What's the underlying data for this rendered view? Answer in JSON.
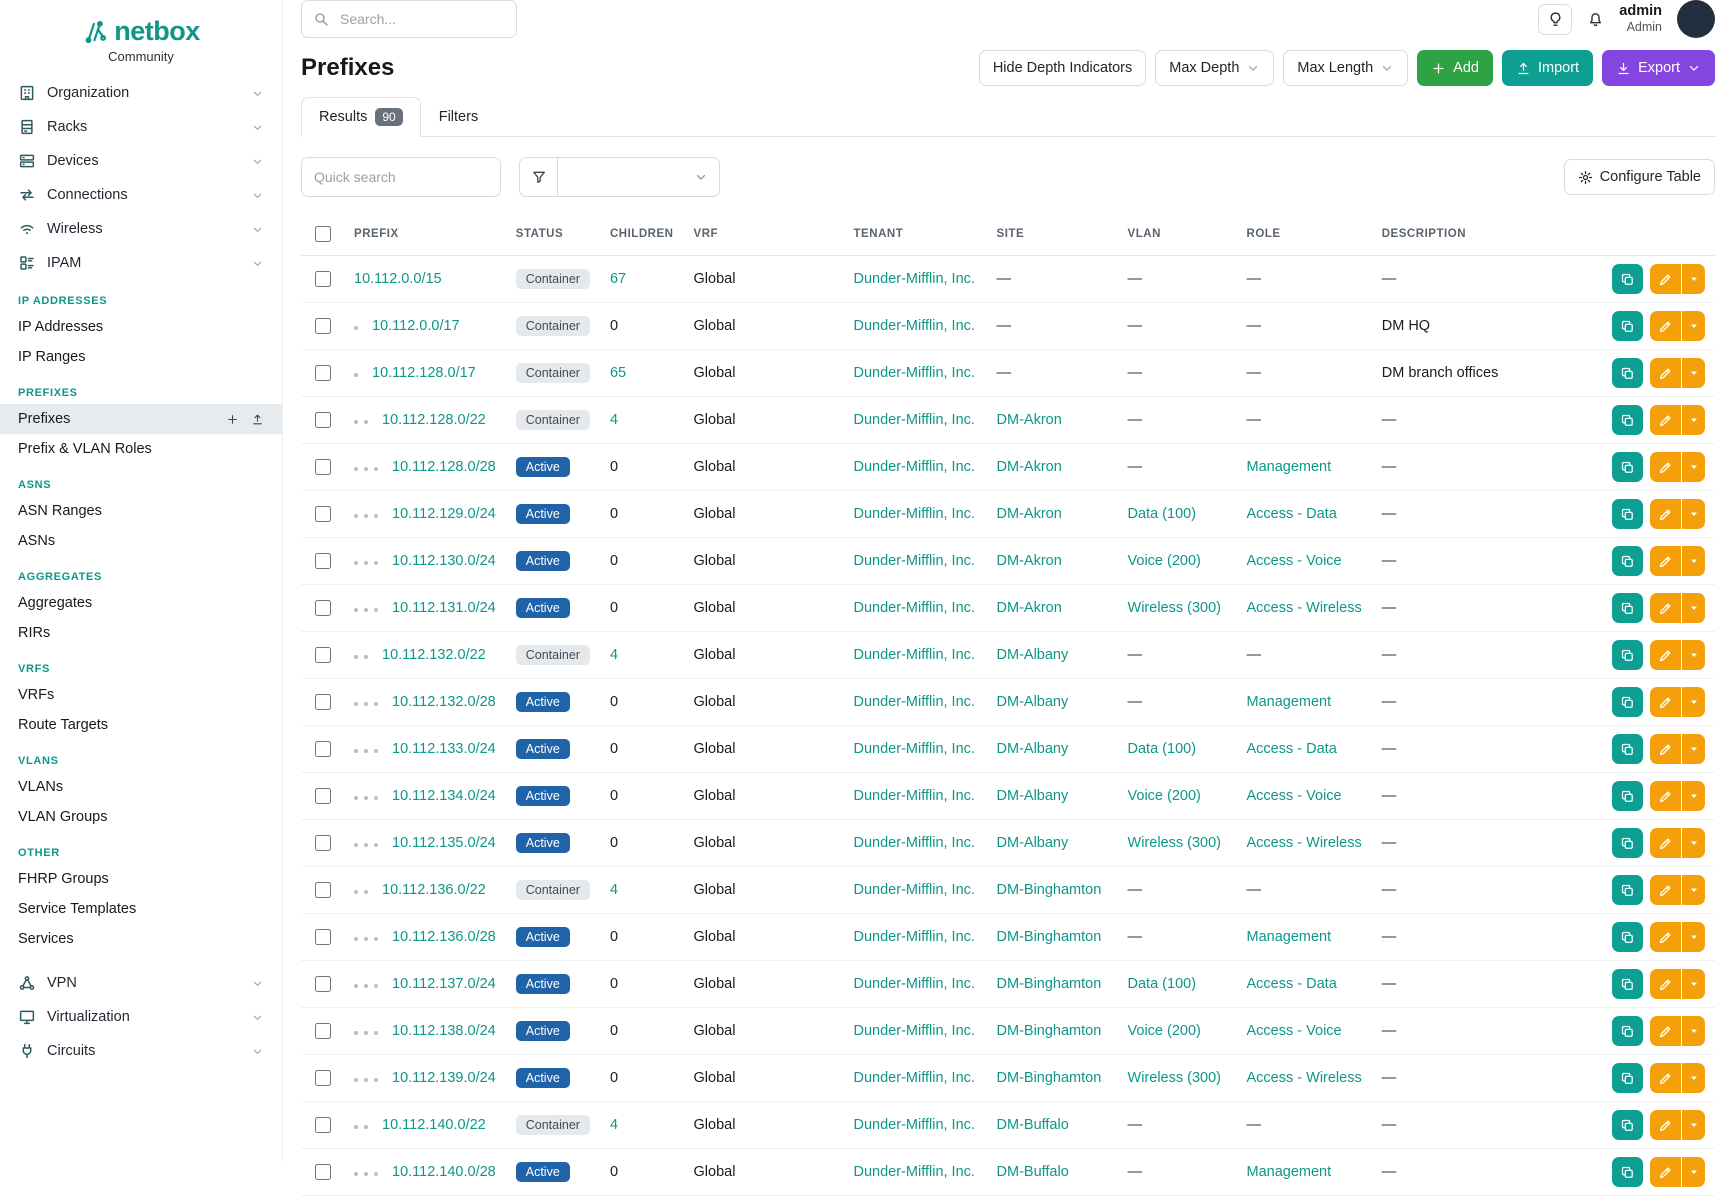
{
  "brand": {
    "name": "netbox",
    "subtitle": "Community"
  },
  "topbar": {
    "search_placeholder": "Search...",
    "user_name": "admin",
    "user_role": "Admin"
  },
  "sidebar": {
    "top_items": [
      {
        "label": "Organization",
        "icon": "building-icon"
      },
      {
        "label": "Racks",
        "icon": "rack-icon"
      },
      {
        "label": "Devices",
        "icon": "devices-icon"
      },
      {
        "label": "Connections",
        "icon": "connections-icon"
      },
      {
        "label": "Wireless",
        "icon": "wireless-icon"
      },
      {
        "label": "IPAM",
        "icon": "ipam-icon",
        "expanded": true
      }
    ],
    "sections": [
      {
        "header": "IP ADDRESSES",
        "items": [
          "IP Addresses",
          "IP Ranges"
        ]
      },
      {
        "header": "PREFIXES",
        "items": [
          "Prefixes",
          "Prefix & VLAN Roles"
        ],
        "active_item": "Prefixes"
      },
      {
        "header": "ASNS",
        "items": [
          "ASN Ranges",
          "ASNs"
        ]
      },
      {
        "header": "AGGREGATES",
        "items": [
          "Aggregates",
          "RIRs"
        ]
      },
      {
        "header": "VRFS",
        "items": [
          "VRFs",
          "Route Targets"
        ]
      },
      {
        "header": "VLANS",
        "items": [
          "VLANs",
          "VLAN Groups"
        ]
      },
      {
        "header": "OTHER",
        "items": [
          "FHRP Groups",
          "Service Templates",
          "Services"
        ]
      }
    ],
    "bottom_items": [
      {
        "label": "VPN",
        "icon": "vpn-icon"
      },
      {
        "label": "Virtualization",
        "icon": "virtualization-icon"
      },
      {
        "label": "Circuits",
        "icon": "circuits-icon"
      }
    ]
  },
  "page": {
    "title": "Prefixes",
    "actions": {
      "hide_depth": "Hide Depth Indicators",
      "max_depth": "Max Depth",
      "max_length": "Max Length",
      "add": "Add",
      "import": "Import",
      "export": "Export"
    }
  },
  "tabs": [
    {
      "label": "Results",
      "badge": "90",
      "active": true
    },
    {
      "label": "Filters",
      "active": false
    }
  ],
  "toolbar": {
    "quick_search_placeholder": "Quick search",
    "configure_table": "Configure Table"
  },
  "table": {
    "columns": [
      "PREFIX",
      "STATUS",
      "CHILDREN",
      "VRF",
      "TENANT",
      "SITE",
      "VLAN",
      "ROLE",
      "DESCRIPTION"
    ],
    "rows": [
      {
        "depth": 0,
        "prefix": "10.112.0.0/15",
        "status": "Container",
        "children": "67",
        "vrf": "Global",
        "tenant": "Dunder-Mifflin, Inc.",
        "site": "—",
        "vlan": "—",
        "role": "—",
        "description": "—"
      },
      {
        "depth": 1,
        "prefix": "10.112.0.0/17",
        "status": "Container",
        "children": "0",
        "vrf": "Global",
        "tenant": "Dunder-Mifflin, Inc.",
        "site": "—",
        "vlan": "—",
        "role": "—",
        "description": "DM HQ"
      },
      {
        "depth": 1,
        "prefix": "10.112.128.0/17",
        "status": "Container",
        "children": "65",
        "vrf": "Global",
        "tenant": "Dunder-Mifflin, Inc.",
        "site": "—",
        "vlan": "—",
        "role": "—",
        "description": "DM branch offices"
      },
      {
        "depth": 2,
        "prefix": "10.112.128.0/22",
        "status": "Container",
        "children": "4",
        "vrf": "Global",
        "tenant": "Dunder-Mifflin, Inc.",
        "site": "DM-Akron",
        "vlan": "—",
        "role": "—",
        "description": "—"
      },
      {
        "depth": 3,
        "prefix": "10.112.128.0/28",
        "status": "Active",
        "children": "0",
        "vrf": "Global",
        "tenant": "Dunder-Mifflin, Inc.",
        "site": "DM-Akron",
        "vlan": "—",
        "role": "Management",
        "description": "—"
      },
      {
        "depth": 3,
        "prefix": "10.112.129.0/24",
        "status": "Active",
        "children": "0",
        "vrf": "Global",
        "tenant": "Dunder-Mifflin, Inc.",
        "site": "DM-Akron",
        "vlan": "Data (100)",
        "role": "Access - Data",
        "description": "—"
      },
      {
        "depth": 3,
        "prefix": "10.112.130.0/24",
        "status": "Active",
        "children": "0",
        "vrf": "Global",
        "tenant": "Dunder-Mifflin, Inc.",
        "site": "DM-Akron",
        "vlan": "Voice (200)",
        "role": "Access - Voice",
        "description": "—"
      },
      {
        "depth": 3,
        "prefix": "10.112.131.0/24",
        "status": "Active",
        "children": "0",
        "vrf": "Global",
        "tenant": "Dunder-Mifflin, Inc.",
        "site": "DM-Akron",
        "vlan": "Wireless (300)",
        "role": "Access - Wireless",
        "description": "—"
      },
      {
        "depth": 2,
        "prefix": "10.112.132.0/22",
        "status": "Container",
        "children": "4",
        "vrf": "Global",
        "tenant": "Dunder-Mifflin, Inc.",
        "site": "DM-Albany",
        "vlan": "—",
        "role": "—",
        "description": "—"
      },
      {
        "depth": 3,
        "prefix": "10.112.132.0/28",
        "status": "Active",
        "children": "0",
        "vrf": "Global",
        "tenant": "Dunder-Mifflin, Inc.",
        "site": "DM-Albany",
        "vlan": "—",
        "role": "Management",
        "description": "—"
      },
      {
        "depth": 3,
        "prefix": "10.112.133.0/24",
        "status": "Active",
        "children": "0",
        "vrf": "Global",
        "tenant": "Dunder-Mifflin, Inc.",
        "site": "DM-Albany",
        "vlan": "Data (100)",
        "role": "Access - Data",
        "description": "—"
      },
      {
        "depth": 3,
        "prefix": "10.112.134.0/24",
        "status": "Active",
        "children": "0",
        "vrf": "Global",
        "tenant": "Dunder-Mifflin, Inc.",
        "site": "DM-Albany",
        "vlan": "Voice (200)",
        "role": "Access - Voice",
        "description": "—"
      },
      {
        "depth": 3,
        "prefix": "10.112.135.0/24",
        "status": "Active",
        "children": "0",
        "vrf": "Global",
        "tenant": "Dunder-Mifflin, Inc.",
        "site": "DM-Albany",
        "vlan": "Wireless (300)",
        "role": "Access - Wireless",
        "description": "—"
      },
      {
        "depth": 2,
        "prefix": "10.112.136.0/22",
        "status": "Container",
        "children": "4",
        "vrf": "Global",
        "tenant": "Dunder-Mifflin, Inc.",
        "site": "DM-Binghamton",
        "vlan": "—",
        "role": "—",
        "description": "—"
      },
      {
        "depth": 3,
        "prefix": "10.112.136.0/28",
        "status": "Active",
        "children": "0",
        "vrf": "Global",
        "tenant": "Dunder-Mifflin, Inc.",
        "site": "DM-Binghamton",
        "vlan": "—",
        "role": "Management",
        "description": "—"
      },
      {
        "depth": 3,
        "prefix": "10.112.137.0/24",
        "status": "Active",
        "children": "0",
        "vrf": "Global",
        "tenant": "Dunder-Mifflin, Inc.",
        "site": "DM-Binghamton",
        "vlan": "Data (100)",
        "role": "Access - Data",
        "description": "—"
      },
      {
        "depth": 3,
        "prefix": "10.112.138.0/24",
        "status": "Active",
        "children": "0",
        "vrf": "Global",
        "tenant": "Dunder-Mifflin, Inc.",
        "site": "DM-Binghamton",
        "vlan": "Voice (200)",
        "role": "Access - Voice",
        "description": "—"
      },
      {
        "depth": 3,
        "prefix": "10.112.139.0/24",
        "status": "Active",
        "children": "0",
        "vrf": "Global",
        "tenant": "Dunder-Mifflin, Inc.",
        "site": "DM-Binghamton",
        "vlan": "Wireless (300)",
        "role": "Access - Wireless",
        "description": "—"
      },
      {
        "depth": 2,
        "prefix": "10.112.140.0/22",
        "status": "Container",
        "children": "4",
        "vrf": "Global",
        "tenant": "Dunder-Mifflin, Inc.",
        "site": "DM-Buffalo",
        "vlan": "—",
        "role": "—",
        "description": "—"
      },
      {
        "depth": 3,
        "prefix": "10.112.140.0/28",
        "status": "Active",
        "children": "0",
        "vrf": "Global",
        "tenant": "Dunder-Mifflin, Inc.",
        "site": "DM-Buffalo",
        "vlan": "—",
        "role": "Management",
        "description": "—"
      }
    ]
  },
  "colors": {
    "brand": "#0e9688",
    "link": "#0e9688",
    "active_badge": "#2063a8",
    "container_badge_bg": "#e6e9ec",
    "add": "#2ea344",
    "import": "#0e9f93",
    "export": "#8445e0",
    "edit": "#f59f0a"
  }
}
